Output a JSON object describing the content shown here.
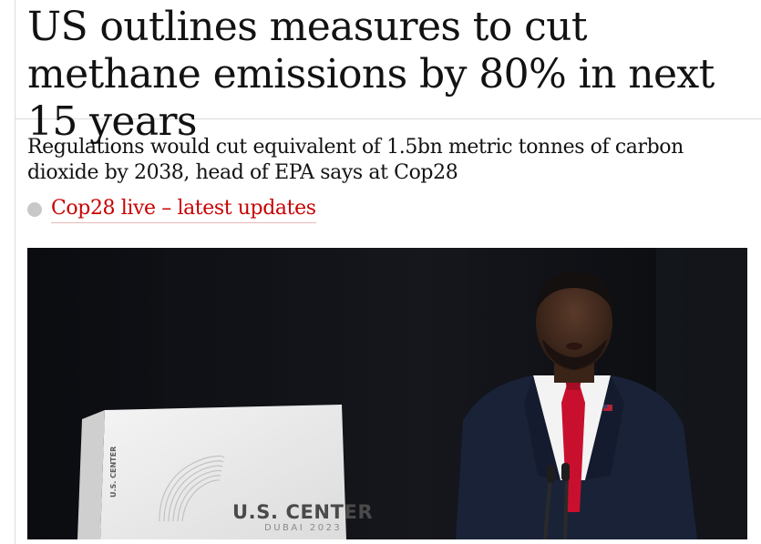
{
  "article": {
    "headline": "US outlines measures to cut methane emissions by 80% in next 15 years",
    "standfirst": "Regulations would cut equivalent of 1.5bn metric tonnes of carbon dioxide by 2038, head of EPA says at Cop28",
    "live_link_label": "Cop28 live – latest updates"
  },
  "photo": {
    "podium_label": "U.S. CENTER",
    "podium_sublabel": "DUBAI 2023",
    "side_label": "U.S. CENTER"
  },
  "colors": {
    "link_red": "#c70000",
    "text": "#121212",
    "rule": "#dcdcdc"
  },
  "icons": {
    "live_dot": "live-dot-icon"
  }
}
